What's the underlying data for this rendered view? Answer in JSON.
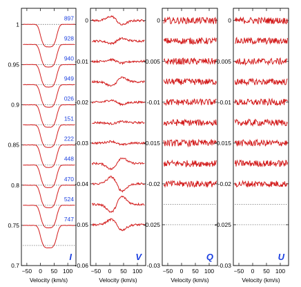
{
  "chart_data": {
    "type": "line",
    "shared_xlabel": "Velocity (km/s)",
    "x_range": [
      -70,
      130
    ],
    "x_ticks": [
      -50,
      0,
      50,
      100
    ],
    "observation_labels": [
      "897",
      "928",
      "940",
      "949",
      "026",
      "151",
      "222",
      "448",
      "470",
      "524",
      "747"
    ],
    "panels": [
      {
        "id": "I",
        "label": "I",
        "ylim": [
          0.7,
          1.02
        ],
        "y_ticks": [
          {
            "v": 1,
            "t": "1"
          },
          {
            "v": 0.95,
            "t": "0.95"
          },
          {
            "v": 0.9,
            "t": "0.9"
          },
          {
            "v": 0.85,
            "t": "0.85"
          },
          {
            "v": 0.8,
            "t": "0.8"
          },
          {
            "v": 0.75,
            "t": "0.75"
          },
          {
            "v": 0.7,
            "t": "0.7"
          }
        ],
        "offset_step": -0.025,
        "continuum": 1.0,
        "profile_center": 30,
        "profile_width": 46,
        "profile_depth": 0.028,
        "baselines": 12
      },
      {
        "id": "V",
        "label": "V",
        "ylim": [
          -0.06,
          0.003
        ],
        "y_ticks": [
          {
            "v": 0,
            "t": "0"
          },
          {
            "v": -0.01,
            "t": "-0.01"
          },
          {
            "v": -0.02,
            "t": "-0.02"
          },
          {
            "v": -0.03,
            "t": "-0.03"
          },
          {
            "v": -0.04,
            "t": "-0.04"
          },
          {
            "v": -0.05,
            "t": "-0.05"
          },
          {
            "v": -0.06,
            "t": "-0.06"
          }
        ],
        "offset_step": -0.005,
        "signature_amplitudes": [
          0.0012,
          0.0007,
          0.0005,
          0.0012,
          0.0006,
          0.0003,
          0.0005,
          0.0016,
          0.002,
          0.0022,
          0.0015
        ],
        "baselines": 11
      },
      {
        "id": "Q",
        "label": "Q",
        "ylim": [
          -0.03,
          0.0015
        ],
        "y_ticks": [
          {
            "v": 0,
            "t": "0"
          },
          {
            "v": -0.005,
            "t": "-0.005"
          },
          {
            "v": -0.01,
            "t": "-0.01"
          },
          {
            "v": -0.015,
            "t": "-0.015"
          },
          {
            "v": -0.02,
            "t": "-0.02"
          },
          {
            "v": -0.025,
            "t": "-0.025"
          },
          {
            "v": -0.03,
            "t": "-0.03"
          }
        ],
        "offset_step": -0.0025,
        "profiles": 9,
        "baselines": 11
      },
      {
        "id": "U",
        "label": "U",
        "ylim": [
          -0.03,
          0.0015
        ],
        "y_ticks": [
          {
            "v": 0,
            "t": "0"
          },
          {
            "v": -0.005,
            "t": "-0.005"
          },
          {
            "v": -0.01,
            "t": "-0.01"
          },
          {
            "v": -0.015,
            "t": "-0.015"
          },
          {
            "v": -0.02,
            "t": "-0.02"
          },
          {
            "v": -0.025,
            "t": "-0.025"
          },
          {
            "v": -0.03,
            "t": "-0.03"
          }
        ],
        "offset_step": -0.0025,
        "profiles": 9,
        "baselines": 11
      }
    ],
    "colors": {
      "profile": "#d21a1a",
      "baseline": "#000000",
      "label": "#1a3fe0"
    }
  }
}
